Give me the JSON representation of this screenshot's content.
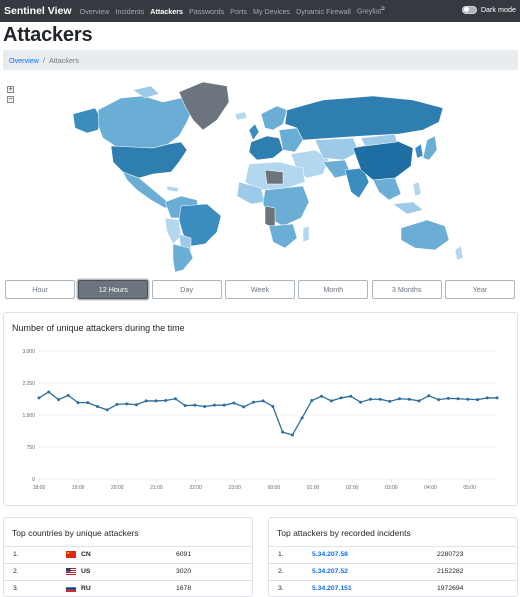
{
  "nav": {
    "brand": "Sentinel View",
    "items": [
      {
        "label": "Overview",
        "active": false
      },
      {
        "label": "Incidents",
        "active": false
      },
      {
        "label": "Attackers",
        "active": true
      },
      {
        "label": "Passwords",
        "active": false
      },
      {
        "label": "Ports",
        "active": false
      },
      {
        "label": "My Devices",
        "active": false
      },
      {
        "label": "Dynamic Firewall",
        "active": false
      },
      {
        "label": "Greylist",
        "active": false
      }
    ],
    "dark_mode_label": "Dark mode"
  },
  "page": {
    "title": "Attackers"
  },
  "breadcrumb": {
    "link": "Overview",
    "separator": "/",
    "current": "Attackers"
  },
  "map": {
    "zoom_in": "+",
    "zoom_out": "−",
    "colors": {
      "dark": "#2e7fb0",
      "mid": "#6aaed6",
      "light": "#b3d7ee",
      "none": "#6c757d"
    }
  },
  "time_buttons": [
    {
      "label": "Hour",
      "active": false
    },
    {
      "label": "12 Hours",
      "active": true
    },
    {
      "label": "Day",
      "active": false
    },
    {
      "label": "Week",
      "active": false
    },
    {
      "label": "Month",
      "active": false
    },
    {
      "label": "3 Months",
      "active": false
    },
    {
      "label": "Year",
      "active": false
    }
  ],
  "chart_data": {
    "type": "line",
    "title": "Number of unique attackers during the time",
    "xlabel": "",
    "ylabel": "",
    "ylim": [
      0,
      3000
    ],
    "yticks": [
      "0",
      "750",
      "1,500",
      "2,250",
      "3,000"
    ],
    "xticks": [
      "18:00",
      "19:00",
      "20:00",
      "21:00",
      "22:00",
      "23:00",
      "00:00",
      "01:00",
      "02:00",
      "03:00",
      "04:00",
      "05:00"
    ],
    "x_range_hours": [
      0,
      11.7
    ],
    "series_color": "#2c6e9e",
    "series": [
      {
        "values": [
          1900,
          2040,
          1860,
          1960,
          1790,
          1790,
          1700,
          1620,
          1750,
          1760,
          1740,
          1830,
          1830,
          1840,
          1880,
          1720,
          1730,
          1700,
          1730,
          1730,
          1780,
          1690,
          1800,
          1830,
          1700,
          1100,
          1030,
          1430,
          1840,
          1940,
          1830,
          1900,
          1940,
          1800,
          1870,
          1870,
          1820,
          1880,
          1870,
          1830,
          1950,
          1860,
          1890,
          1880,
          1870,
          1860,
          1900,
          1900
        ]
      }
    ]
  },
  "top_countries": {
    "title": "Top countries by unique attackers",
    "rows": [
      {
        "rank": "1.",
        "code": "CN",
        "count": "6091"
      },
      {
        "rank": "2.",
        "code": "US",
        "count": "3020"
      },
      {
        "rank": "3.",
        "code": "RU",
        "count": "1678"
      }
    ]
  },
  "top_attackers": {
    "title": "Top attackers by recorded incidents",
    "rows": [
      {
        "rank": "1.",
        "ip": "5.34.207.58",
        "count": "2280723"
      },
      {
        "rank": "2.",
        "ip": "5.34.207.52",
        "count": "2152282"
      },
      {
        "rank": "3.",
        "ip": "5.34.207.151",
        "count": "1972694"
      }
    ]
  }
}
